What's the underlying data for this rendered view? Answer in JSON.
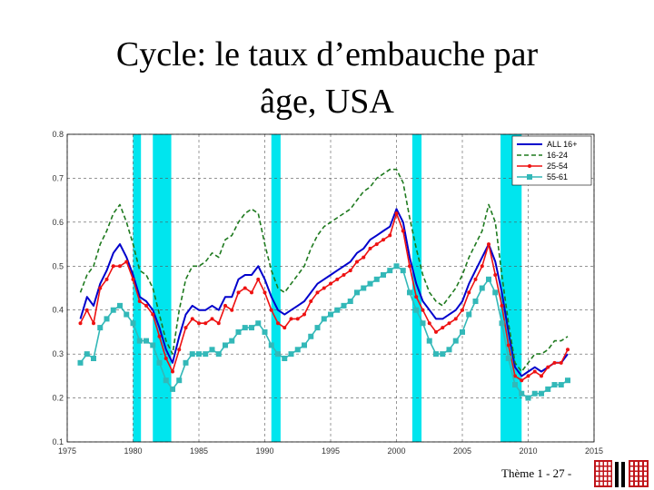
{
  "slide": {
    "title_line1": "Cycle: le taux d’embauche par",
    "title_line2": "âge, USA",
    "footer": "Thème 1 - 27 -"
  },
  "colors": {
    "all": "#0000cc",
    "young": "#1f7a1f",
    "prime": "#ee1111",
    "older": "#33b8b8",
    "recession": "#00e5ee",
    "logo": "#c0141a"
  },
  "chart_data": {
    "type": "line",
    "title": "",
    "xlabel": "",
    "ylabel": "",
    "xlim": [
      1975,
      2015
    ],
    "ylim": [
      0.1,
      0.8
    ],
    "x_ticks": [
      "1975",
      "1980",
      "1985",
      "1990",
      "1995",
      "2000",
      "2005",
      "2010",
      "2015"
    ],
    "y_ticks": [
      "0.1",
      "0.2",
      "0.3",
      "0.4",
      "0.5",
      "0.6",
      "0.7",
      "0.8"
    ],
    "grid": true,
    "legend_position": "top-right",
    "recessions": [
      [
        1980.0,
        1980.6
      ],
      [
        1981.5,
        1982.9
      ],
      [
        1990.5,
        1991.2
      ],
      [
        2001.2,
        2001.9
      ],
      [
        2007.9,
        2009.5
      ]
    ],
    "x": [
      1976,
      1976.5,
      1977,
      1977.5,
      1978,
      1978.5,
      1979,
      1979.5,
      1980,
      1980.5,
      1981,
      1981.5,
      1982,
      1982.5,
      1983,
      1983.5,
      1984,
      1984.5,
      1985,
      1985.5,
      1986,
      1986.5,
      1987,
      1987.5,
      1988,
      1988.5,
      1989,
      1989.5,
      1990,
      1990.5,
      1991,
      1991.5,
      1992,
      1992.5,
      1993,
      1993.5,
      1994,
      1994.5,
      1995,
      1995.5,
      1996,
      1996.5,
      1997,
      1997.5,
      1998,
      1998.5,
      1999,
      1999.5,
      2000,
      2000.5,
      2001,
      2001.5,
      2002,
      2002.5,
      2003,
      2003.5,
      2004,
      2004.5,
      2005,
      2005.5,
      2006,
      2006.5,
      2007,
      2007.5,
      2008,
      2008.5,
      2009,
      2009.5,
      2010,
      2010.5,
      2011,
      2011.5,
      2012,
      2012.5,
      2013
    ],
    "series": [
      {
        "name": "ALL 16+",
        "values": [
          0.38,
          0.43,
          0.41,
          0.46,
          0.49,
          0.53,
          0.55,
          0.52,
          0.48,
          0.43,
          0.42,
          0.4,
          0.36,
          0.31,
          0.28,
          0.34,
          0.39,
          0.41,
          0.4,
          0.4,
          0.41,
          0.4,
          0.43,
          0.43,
          0.47,
          0.48,
          0.48,
          0.5,
          0.47,
          0.43,
          0.4,
          0.39,
          0.4,
          0.41,
          0.42,
          0.44,
          0.46,
          0.47,
          0.48,
          0.49,
          0.5,
          0.51,
          0.53,
          0.54,
          0.56,
          0.57,
          0.58,
          0.59,
          0.63,
          0.6,
          0.52,
          0.46,
          0.42,
          0.4,
          0.38,
          0.38,
          0.39,
          0.4,
          0.42,
          0.46,
          0.49,
          0.52,
          0.55,
          0.51,
          0.44,
          0.35,
          0.27,
          0.25,
          0.26,
          0.27,
          0.26,
          0.27,
          0.28,
          0.28,
          0.3
        ]
      },
      {
        "name": "16-24",
        "values": [
          0.44,
          0.48,
          0.5,
          0.55,
          0.58,
          0.62,
          0.64,
          0.6,
          0.55,
          0.49,
          0.48,
          0.45,
          0.39,
          0.33,
          0.3,
          0.4,
          0.47,
          0.5,
          0.5,
          0.51,
          0.53,
          0.52,
          0.56,
          0.57,
          0.6,
          0.62,
          0.63,
          0.62,
          0.55,
          0.49,
          0.45,
          0.44,
          0.46,
          0.48,
          0.5,
          0.54,
          0.57,
          0.59,
          0.6,
          0.61,
          0.62,
          0.63,
          0.65,
          0.67,
          0.68,
          0.7,
          0.71,
          0.72,
          0.72,
          0.69,
          0.61,
          0.54,
          0.48,
          0.44,
          0.42,
          0.41,
          0.43,
          0.45,
          0.48,
          0.52,
          0.55,
          0.58,
          0.64,
          0.6,
          0.48,
          0.37,
          0.28,
          0.26,
          0.28,
          0.3,
          0.3,
          0.31,
          0.33,
          0.33,
          0.34
        ]
      },
      {
        "name": "25-54",
        "values": [
          0.37,
          0.4,
          0.37,
          0.45,
          0.47,
          0.5,
          0.5,
          0.51,
          0.47,
          0.42,
          0.41,
          0.39,
          0.34,
          0.29,
          0.26,
          0.31,
          0.36,
          0.38,
          0.37,
          0.37,
          0.38,
          0.37,
          0.41,
          0.4,
          0.44,
          0.45,
          0.44,
          0.47,
          0.44,
          0.4,
          0.37,
          0.36,
          0.38,
          0.38,
          0.39,
          0.42,
          0.44,
          0.45,
          0.46,
          0.47,
          0.48,
          0.49,
          0.51,
          0.52,
          0.54,
          0.55,
          0.56,
          0.57,
          0.62,
          0.58,
          0.5,
          0.43,
          0.4,
          0.37,
          0.35,
          0.36,
          0.37,
          0.38,
          0.4,
          0.44,
          0.47,
          0.5,
          0.55,
          0.48,
          0.41,
          0.32,
          0.25,
          0.24,
          0.25,
          0.26,
          0.25,
          0.27,
          0.28,
          0.28,
          0.31
        ]
      },
      {
        "name": "55-61",
        "values": [
          0.28,
          0.3,
          0.29,
          0.36,
          0.38,
          0.4,
          0.41,
          0.39,
          0.37,
          0.33,
          0.33,
          0.32,
          0.28,
          0.24,
          0.22,
          0.24,
          0.28,
          0.3,
          0.3,
          0.3,
          0.31,
          0.3,
          0.32,
          0.33,
          0.35,
          0.36,
          0.36,
          0.37,
          0.35,
          0.32,
          0.3,
          0.29,
          0.3,
          0.31,
          0.32,
          0.34,
          0.36,
          0.38,
          0.39,
          0.4,
          0.41,
          0.42,
          0.44,
          0.45,
          0.46,
          0.47,
          0.48,
          0.49,
          0.5,
          0.49,
          0.44,
          0.4,
          0.37,
          0.33,
          0.3,
          0.3,
          0.31,
          0.33,
          0.35,
          0.39,
          0.42,
          0.45,
          0.47,
          0.44,
          0.37,
          0.29,
          0.23,
          0.21,
          0.2,
          0.21,
          0.21,
          0.22,
          0.23,
          0.23,
          0.24
        ]
      }
    ]
  }
}
